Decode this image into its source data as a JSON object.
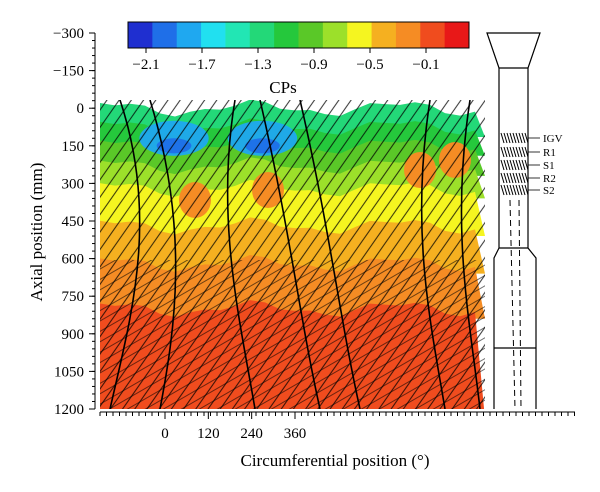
{
  "chart_data": {
    "type": "heatmap",
    "xlabel": "Circumferential position (°)",
    "ylabel": "Axial position (mm)",
    "colorbar_title": "CPs",
    "x_ticks": [
      0,
      120,
      240,
      360
    ],
    "y_ticks": [
      -300,
      -150,
      0,
      150,
      300,
      450,
      600,
      750,
      900,
      1050,
      1200
    ],
    "ylim": [
      -300,
      1200
    ],
    "colorbar": {
      "ticks": [
        -2.1,
        -1.7,
        -1.3,
        -0.9,
        -0.5,
        -0.1
      ],
      "colors": [
        "#1f2fd0",
        "#1f6fe8",
        "#1fa8f0",
        "#21e0f0",
        "#22e6b4",
        "#23d878",
        "#25c83c",
        "#5ac828",
        "#9ce02a",
        "#f5f520",
        "#f5b020",
        "#f58c24",
        "#f04c1e",
        "#e81818"
      ]
    },
    "contour_levels": [
      {
        "y_from": 0,
        "y_to": 75,
        "color": "#23d878"
      },
      {
        "y_from": 75,
        "y_to": 150,
        "color": "#25c83c"
      },
      {
        "y_from": 150,
        "y_to": 230,
        "color": "#5ac828"
      },
      {
        "y_from": 230,
        "y_to": 320,
        "color": "#9ce02a"
      },
      {
        "y_from": 320,
        "y_to": 470,
        "color": "#f5f520"
      },
      {
        "y_from": 470,
        "y_to": 620,
        "color": "#f5b020"
      },
      {
        "y_from": 620,
        "y_to": 800,
        "color": "#f58c24"
      },
      {
        "y_from": 800,
        "y_to": 1200,
        "color": "#f04c1e"
      }
    ],
    "low_pressure_regions": [
      {
        "x": 25,
        "y": 120,
        "rx": 60,
        "ry": 70,
        "color": "#1fa8f0"
      },
      {
        "x": 25,
        "y": 150,
        "rx": 30,
        "ry": 30,
        "color": "#1f6fe8"
      },
      {
        "x": 270,
        "y": 120,
        "rx": 60,
        "ry": 70,
        "color": "#1fa8f0"
      },
      {
        "x": 270,
        "y": 150,
        "rx": 30,
        "ry": 30,
        "color": "#1f6fe8"
      }
    ],
    "blade_rows": [
      "IGV",
      "R1",
      "S1",
      "R2",
      "S2"
    ],
    "blade_row_axial": [
      150,
      200,
      240,
      280,
      320
    ]
  }
}
